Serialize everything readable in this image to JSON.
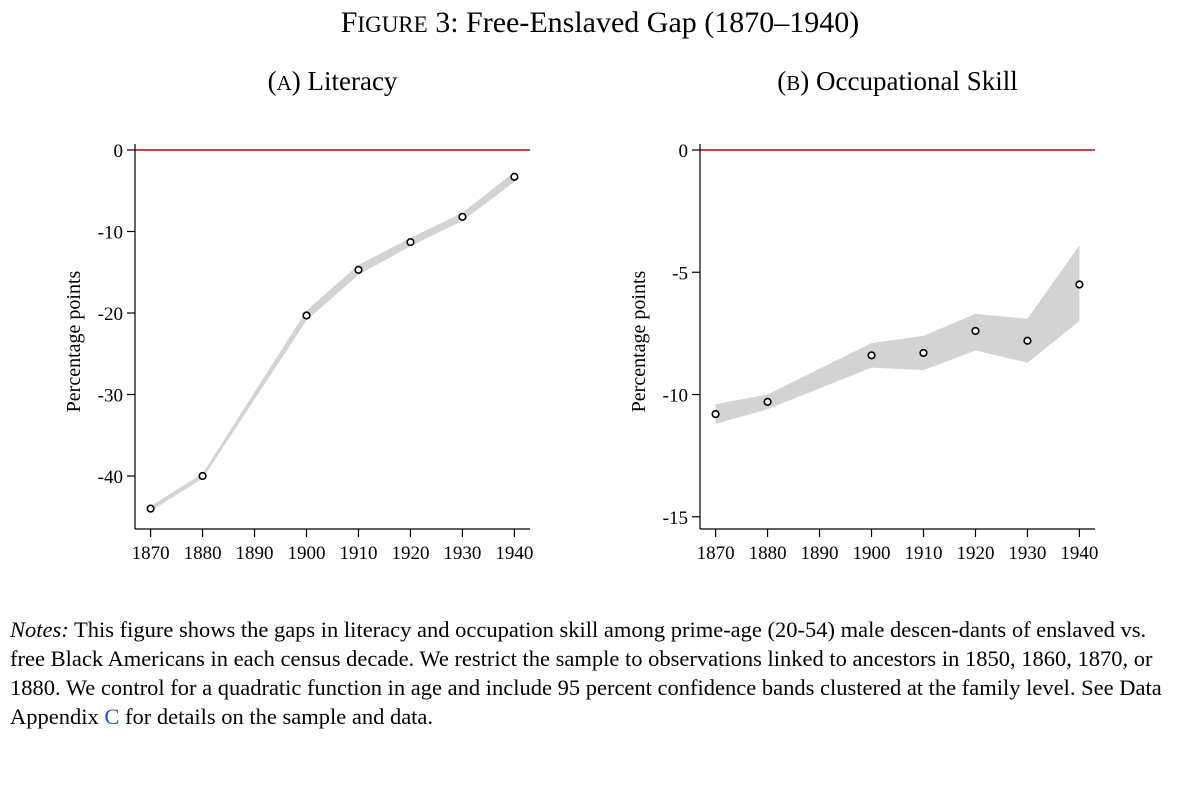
{
  "figure": {
    "title_prefix": "F",
    "title_prefix_caps": "IGURE",
    "title_rest": " 3: Free-Enslaved Gap (1870–1940)"
  },
  "colors": {
    "zero_line": "#c0001a",
    "band": "#d3d3d3",
    "axis": "#000000"
  },
  "chart_data": [
    {
      "type": "line",
      "panel_letter_open": "(",
      "panel_letter": "A",
      "panel_letter_close": ")",
      "panel_name": " Literacy",
      "title": "(A) Literacy",
      "xlabel": "",
      "ylabel": "Percentage points",
      "x": [
        1870,
        1880,
        1900,
        1910,
        1920,
        1930,
        1940
      ],
      "y": [
        -44,
        -40,
        -20.3,
        -14.7,
        -11.3,
        -8.2,
        -3.3
      ],
      "ci_lower": [
        -44.3,
        -40.3,
        -20.9,
        -15.3,
        -11.8,
        -8.7,
        -3.9
      ],
      "ci_upper": [
        -43.7,
        -39.7,
        -19.7,
        -14.1,
        -10.8,
        -7.7,
        -2.7
      ],
      "xlim": [
        1867,
        1943
      ],
      "ylim": [
        -46.5,
        0
      ],
      "xticks": [
        1870,
        1880,
        1890,
        1900,
        1910,
        1920,
        1930,
        1940
      ],
      "yticks": [
        0,
        -10,
        -20,
        -30,
        -40
      ],
      "reference_line": 0
    },
    {
      "type": "line",
      "panel_letter_open": "(",
      "panel_letter": "B",
      "panel_letter_close": ")",
      "panel_name": " Occupational Skill",
      "title": "(B) Occupational Skill",
      "xlabel": "",
      "ylabel": "Percentage points",
      "x": [
        1870,
        1880,
        1900,
        1910,
        1920,
        1930,
        1940
      ],
      "y": [
        -10.8,
        -10.3,
        -8.4,
        -8.3,
        -7.4,
        -7.8,
        -5.5
      ],
      "ci_lower": [
        -11.2,
        -10.6,
        -8.9,
        -9.0,
        -8.2,
        -8.7,
        -7.0
      ],
      "ci_upper": [
        -10.4,
        -10.0,
        -7.9,
        -7.6,
        -6.7,
        -6.9,
        -3.9
      ],
      "xlim": [
        1867,
        1943
      ],
      "ylim": [
        -15.5,
        0
      ],
      "xticks": [
        1870,
        1880,
        1890,
        1900,
        1910,
        1920,
        1930,
        1940
      ],
      "yticks": [
        0,
        -5,
        -10,
        -15
      ],
      "reference_line": 0
    }
  ],
  "notes": {
    "label": "Notes:",
    "text": " This figure shows the gaps in literacy and occupation skill among prime-age (20-54) male descen-dants of enslaved vs. free Black Americans in each census decade. We restrict the sample to observations linked to ancestors in 1850, 1860, 1870, or 1880. We control for a quadratic function in age and include 95 percent confidence bands clustered at the family level. See Data Appendix ",
    "link": "C",
    "text_end": " for details on the sample and data."
  }
}
